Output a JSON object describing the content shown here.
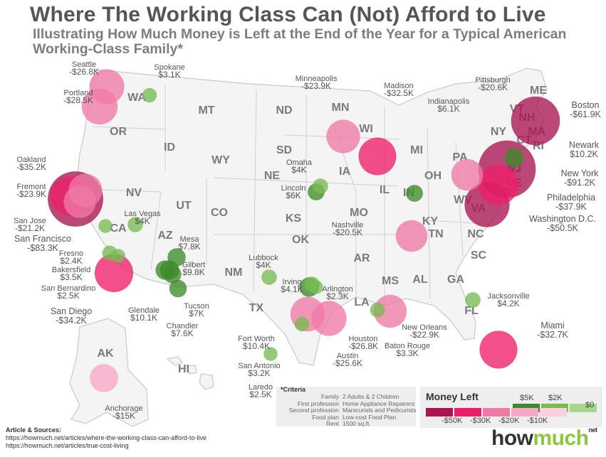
{
  "title": "Where The Working Class Can (Not) Afford to Live",
  "subtitle": "Illustrating How Much Money is Left at the End of the Year for a Typical American Working-Class Family*",
  "colors": {
    "neg50": "#a8154f",
    "neg30": "#ee1f6a",
    "neg20": "#f07aa6",
    "neg10": "#f6a8c7",
    "neg0": "#fbd0e0",
    "pos5": "#3d8a2a",
    "pos2": "#77bb52",
    "pos0": "#a5d88c",
    "land": "#f4f4f4",
    "border": "#c9c9c9"
  },
  "states": [
    "WA",
    "OR",
    "ID",
    "MT",
    "ND",
    "MN",
    "WI",
    "MI",
    "SD",
    "WY",
    "NE",
    "IA",
    "IL",
    "IN",
    "OH",
    "PA",
    "NY",
    "VT",
    "NH",
    "ME",
    "MA",
    "CT",
    "RI",
    "NJ",
    "DE",
    "MD",
    "NV",
    "CA",
    "UT",
    "CO",
    "KS",
    "MO",
    "KY",
    "WV",
    "VA",
    "AZ",
    "NM",
    "OK",
    "AR",
    "TN",
    "NC",
    "SC",
    "TX",
    "LA",
    "MS",
    "AL",
    "GA",
    "FL",
    "AK",
    "HI"
  ],
  "cities": [
    {
      "name": "Seattle",
      "value": "-$26.8K",
      "amount": -26.8
    },
    {
      "name": "Spokane",
      "value": "$3.1K",
      "amount": 3.1
    },
    {
      "name": "Portland",
      "value": "-$28.5K",
      "amount": -28.5
    },
    {
      "name": "Oakland",
      "value": "-$35.2K",
      "amount": -35.2
    },
    {
      "name": "Fremont",
      "value": "-$23.9K",
      "amount": -23.9
    },
    {
      "name": "San Jose",
      "value": "-$21.2K",
      "amount": -21.2
    },
    {
      "name": "San Francisco",
      "value": "-$83.3K",
      "amount": -83.3
    },
    {
      "name": "Fresno",
      "value": "$2.4K",
      "amount": 2.4
    },
    {
      "name": "Bakersfield",
      "value": "$3.5K",
      "amount": 3.5
    },
    {
      "name": "San Bernardino",
      "value": "$2.5K",
      "amount": 2.5
    },
    {
      "name": "San Diego",
      "value": "-$34.2K",
      "amount": -34.2
    },
    {
      "name": "Las Vegas",
      "value": "$4K",
      "amount": 4.0
    },
    {
      "name": "Mesa",
      "value": "$7.8K",
      "amount": 7.8
    },
    {
      "name": "Gilbert",
      "value": "$9.8K",
      "amount": 9.8
    },
    {
      "name": "Glendale",
      "value": "$10.1K",
      "amount": 10.1
    },
    {
      "name": "Tucson",
      "value": "$7K",
      "amount": 7.0
    },
    {
      "name": "Chandler",
      "value": "$7.6K",
      "amount": 7.6
    },
    {
      "name": "Lubbock",
      "value": "$4K",
      "amount": 4.0
    },
    {
      "name": "Irving",
      "value": "$4.1K",
      "amount": 4.1
    },
    {
      "name": "Arlington",
      "value": "$2.3K",
      "amount": 2.3
    },
    {
      "name": "Fort Worth",
      "value": "$10.4K",
      "amount": 10.4
    },
    {
      "name": "San Antonio",
      "value": "$3.2K",
      "amount": 3.2
    },
    {
      "name": "Laredo",
      "value": "$2.5K",
      "amount": 2.5
    },
    {
      "name": "Houston",
      "value": "-$26.8K",
      "amount": -26.8
    },
    {
      "name": "Austin",
      "value": "-$25.6K",
      "amount": -25.6
    },
    {
      "name": "Omaha",
      "value": "$4K",
      "amount": 4.0
    },
    {
      "name": "Lincoln",
      "value": "$6K",
      "amount": 6.0
    },
    {
      "name": "Minneapolis",
      "value": "-$23.9K",
      "amount": -23.9
    },
    {
      "name": "Madison",
      "value": "-$32.5K",
      "amount": -32.5
    },
    {
      "name": "Indianapolis",
      "value": "$6.1K",
      "amount": 6.1
    },
    {
      "name": "Pittsburgh",
      "value": "-$20.6K",
      "amount": -20.6
    },
    {
      "name": "Nashville",
      "value": "-$20.5K",
      "amount": -20.5
    },
    {
      "name": "New Orleans",
      "value": "-$22.9K",
      "amount": -22.9
    },
    {
      "name": "Baton Rouge",
      "value": "$3.3K",
      "amount": 3.3
    },
    {
      "name": "Jacksonville",
      "value": "$4.2K",
      "amount": 4.2
    },
    {
      "name": "Miami",
      "value": "-$32.7K",
      "amount": -32.7
    },
    {
      "name": "Boston",
      "value": "-$61.9K",
      "amount": -61.9
    },
    {
      "name": "Newark",
      "value": "$10.2K",
      "amount": 10.2
    },
    {
      "name": "New York",
      "value": "-$91.2K",
      "amount": -91.2
    },
    {
      "name": "Philadelphia",
      "value": "-$37.9K",
      "amount": -37.9
    },
    {
      "name": "Washington D.C.",
      "value": "-$50.5K",
      "amount": -50.5
    },
    {
      "name": "Anchorage",
      "value": "-$15K",
      "amount": -15.0
    }
  ],
  "criteria": {
    "heading": "*Criteria",
    "rows": [
      {
        "key": "Family",
        "value": "2 Adults & 2 Children"
      },
      {
        "key": "First profession",
        "value": "Home Appliance Repairers"
      },
      {
        "key": "Second profession",
        "value": "Manicurists and Pedicurists"
      },
      {
        "key": "Food plan",
        "value": "Low-cost Food Plan"
      },
      {
        "key": "Rent",
        "value": "1500 sq.ft."
      }
    ]
  },
  "legend": {
    "title": "Money Left",
    "pos_labels": [
      "$5K",
      "$2K"
    ],
    "zero_label": "$0",
    "neg_labels": [
      "-$50K",
      "-$30K",
      "-$20K",
      "-$10K"
    ]
  },
  "sources": {
    "heading": "Article & Sources:",
    "links": [
      "https://howmuch.net/articles/where-the-working-class-can-afford-to-live",
      "https://howmuch.net/articles/true-cost-living"
    ]
  },
  "brand": {
    "part1": "how",
    "part2": "much",
    "suffix": "net"
  }
}
